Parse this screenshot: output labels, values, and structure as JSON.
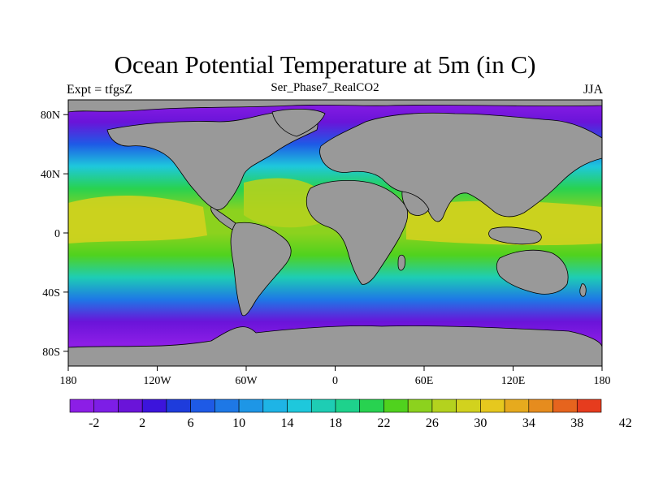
{
  "title": "Ocean Potential Temperature at 5m (in C)",
  "left_string": "Expt = tfgsZ",
  "center_string": "Ser_Phase7_RealCO2",
  "right_string": "JJA",
  "map": {
    "projection": "cylindrical equidistant",
    "lon_range": [
      -180,
      180
    ],
    "lat_range": [
      -90,
      90
    ],
    "land_color": "#999999",
    "lat_ticks": [
      {
        "value": 80,
        "label": "80N"
      },
      {
        "value": 40,
        "label": "40N"
      },
      {
        "value": 0,
        "label": "0"
      },
      {
        "value": -40,
        "label": "40S"
      },
      {
        "value": -80,
        "label": "80S"
      }
    ],
    "lon_ticks": [
      {
        "value": -180,
        "label": "180"
      },
      {
        "value": -120,
        "label": "120W"
      },
      {
        "value": -60,
        "label": "60W"
      },
      {
        "value": 0,
        "label": "0"
      },
      {
        "value": 60,
        "label": "60E"
      },
      {
        "value": 120,
        "label": "120E"
      },
      {
        "value": 180,
        "label": "180"
      }
    ]
  },
  "colorbar": {
    "colors": [
      "#8c1ee6",
      "#7d1ee6",
      "#6a14d9",
      "#3c14dc",
      "#1e3cdc",
      "#1e5ae6",
      "#1e78e6",
      "#1e96e6",
      "#1eb4e6",
      "#1ec8dc",
      "#1ecdb4",
      "#1ed28c",
      "#28d250",
      "#50d21e",
      "#8cd21e",
      "#b4d21e",
      "#d2d21e",
      "#e6c81e",
      "#e6aa1e",
      "#e68c1e",
      "#e6641e",
      "#e63c1e"
    ],
    "labels": [
      "-2",
      "2",
      "6",
      "10",
      "14",
      "18",
      "22",
      "26",
      "30",
      "34",
      "38",
      "42"
    ]
  },
  "temperature_by_lat": [
    {
      "lat": 90,
      "value": -2
    },
    {
      "lat": 75,
      "value": 2
    },
    {
      "lat": 60,
      "value": 8
    },
    {
      "lat": 45,
      "value": 16
    },
    {
      "lat": 30,
      "value": 24
    },
    {
      "lat": 15,
      "value": 28
    },
    {
      "lat": 0,
      "value": 27
    },
    {
      "lat": -15,
      "value": 25
    },
    {
      "lat": -30,
      "value": 19
    },
    {
      "lat": -45,
      "value": 11
    },
    {
      "lat": -60,
      "value": 2
    },
    {
      "lat": -75,
      "value": -2
    },
    {
      "lat": -90,
      "value": -2
    }
  ]
}
